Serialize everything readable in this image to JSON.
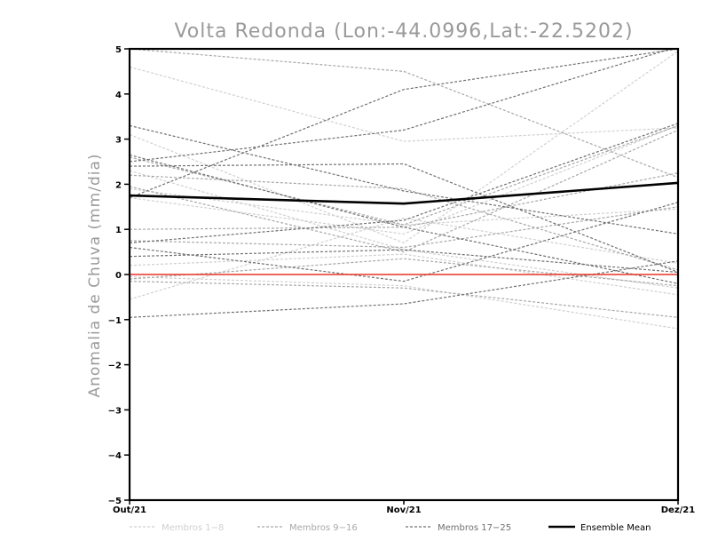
{
  "chart_data": {
    "type": "line",
    "title": "Volta Redonda (Lon:-44.0996,Lat:-22.5202)",
    "xlabel": "",
    "ylabel": "Anomalia de Chuva (mm/dia)",
    "categories": [
      "Out/21",
      "Nov/21",
      "Dez/21"
    ],
    "ylim": [
      -5,
      5
    ],
    "yticks": [
      -5,
      -4,
      -3,
      -2,
      -1,
      0,
      1,
      2,
      3,
      4,
      5
    ],
    "ytick_labels": [
      "-5",
      "-4",
      "-3",
      "-2",
      "-1",
      "0",
      "1",
      "2",
      "3",
      "4",
      "5"
    ],
    "grid": false,
    "legend_position": "bottom",
    "zero_line": {
      "value": 0,
      "color": "#e8322b"
    },
    "groups": [
      {
        "name": "Membros 1-8",
        "color": "#d0d0d0",
        "style": "dashed",
        "series": [
          [
            4.6,
            2.95,
            3.25
          ],
          [
            3.1,
            0.7,
            4.95
          ],
          [
            1.9,
            1.1,
            1.45
          ],
          [
            -0.05,
            -0.25,
            -1.2
          ],
          [
            -0.55,
            1.25,
            0.25
          ],
          [
            2.3,
            0.55,
            -0.3
          ],
          [
            0.2,
            0.45,
            -0.45
          ],
          [
            1.7,
            0.9,
            3.3
          ]
        ]
      },
      {
        "name": "Membros 9-16",
        "color": "#a8a8a8",
        "style": "dashed",
        "series": [
          [
            5.0,
            4.5,
            2.15
          ],
          [
            2.6,
            1.1,
            3.3
          ],
          [
            -0.1,
            0.35,
            -0.25
          ],
          [
            1.0,
            1.05,
            2.25
          ],
          [
            0.75,
            0.6,
            1.5
          ],
          [
            2.2,
            1.9,
            0.1
          ],
          [
            -0.15,
            -0.3,
            -0.95
          ],
          [
            1.95,
            0.5,
            3.2
          ]
        ]
      },
      {
        "name": "Membros 17-25",
        "color": "#707070",
        "style": "dashed",
        "series": [
          [
            3.3,
            1.85,
            0.9
          ],
          [
            2.5,
            3.2,
            5.05
          ],
          [
            -0.95,
            -0.65,
            0.3
          ],
          [
            0.7,
            1.2,
            3.35
          ],
          [
            2.4,
            2.45,
            0.05
          ],
          [
            0.6,
            -0.15,
            1.6
          ],
          [
            1.7,
            4.1,
            5.0
          ],
          [
            0.4,
            0.55,
            0.05
          ],
          [
            2.65,
            1.05,
            -0.2
          ]
        ]
      }
    ],
    "series": [
      {
        "name": "Ensemble Mean",
        "color": "#000000",
        "values": [
          1.75,
          1.57,
          2.03
        ]
      }
    ]
  }
}
